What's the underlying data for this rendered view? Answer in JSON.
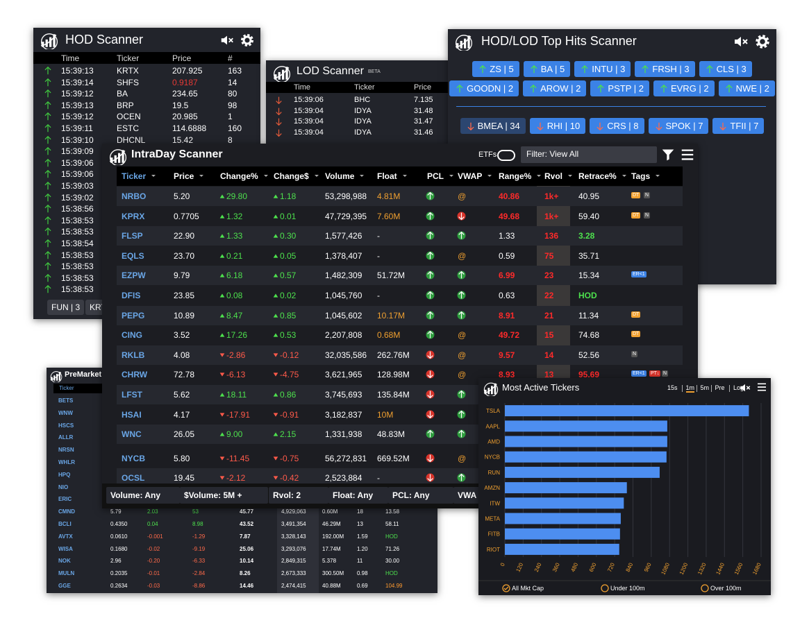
{
  "hod_scanner": {
    "title": "HOD Scanner",
    "columns": [
      "Time",
      "Ticker",
      "Price",
      "#"
    ],
    "rows": [
      [
        "15:39:13",
        "KRTX",
        "207.925",
        "163"
      ],
      [
        "15:39:14",
        "SHFS",
        "0.9187",
        "14"
      ],
      [
        "15:39:12",
        "BA",
        "234.65",
        "80"
      ],
      [
        "15:39:13",
        "BRP",
        "19.5",
        "98"
      ],
      [
        "15:39:12",
        "OCEN",
        "20.985",
        "1"
      ],
      [
        "15:39:11",
        "ESTC",
        "114.6888",
        "160"
      ],
      [
        "15:39:10",
        "DHCNL",
        "15.42",
        "8"
      ],
      [
        "15:39:09"
      ],
      [
        "15:39:06"
      ],
      [
        "15:39:06"
      ],
      [
        "15:39:03"
      ],
      [
        "15:39:02"
      ],
      [
        "15:38:56"
      ],
      [
        "15:38:53"
      ],
      [
        "15:38:53"
      ],
      [
        "15:38:54"
      ],
      [
        "15:38:53"
      ],
      [
        "15:38:53"
      ],
      [
        "15:38:53"
      ],
      [
        "15:38:53"
      ]
    ],
    "footer": [
      "FUN | 3",
      "KRT"
    ]
  },
  "lod_scanner": {
    "title": "LOD Scanner",
    "badge": "BETA",
    "columns": [
      "Time",
      "Ticker",
      "Price"
    ],
    "rows": [
      [
        "15:39:06",
        "BHC",
        "7.135"
      ],
      [
        "15:39:04",
        "IDYA",
        "31.48"
      ],
      [
        "15:39:04",
        "IDYA",
        "31.47"
      ],
      [
        "15:39:04",
        "IDYA",
        "31.46"
      ]
    ]
  },
  "top_hits": {
    "title": "HOD/LOD Top Hits Scanner",
    "up": [
      "ZS | 5",
      "BA | 5",
      "INTU | 3",
      "FRSH | 3",
      "CLS | 3",
      "GOODN | 2",
      "AROW | 2",
      "PSTP | 2",
      "EVRG | 2",
      "NWE | 2"
    ],
    "down": [
      "BMEA | 34",
      "RHI | 10",
      "CRS | 8",
      "SPOK | 7",
      "TFII | 7"
    ]
  },
  "premarket": {
    "title": "PreMarket",
    "columns": [
      "Ticker"
    ],
    "rows": [
      [
        "BETS"
      ],
      [
        "WNW"
      ],
      [
        "HSCS"
      ],
      [
        "ALLR"
      ],
      [
        "NRSN"
      ],
      [
        "WHLR"
      ],
      [
        "HPQ"
      ],
      [
        "NIO"
      ],
      [
        "ERIC"
      ],
      [
        "CMND",
        "5.79",
        "2.03",
        "53",
        "45.77",
        "4,929,063",
        "0.60M",
        "18",
        "13.58"
      ],
      [
        "BCLI",
        "0.4350",
        "0.04",
        "8.98",
        "43.52",
        "3,491,354",
        "46.29M",
        "13",
        "58.11"
      ],
      [
        "AVTX",
        "0.0610",
        "-0.001",
        "-1.29",
        "7.87",
        "3,328,143",
        "192.00M",
        "1.59",
        "HOD"
      ],
      [
        "WISA",
        "0.1680",
        "-0.02",
        "-9.19",
        "25.06",
        "3,293,076",
        "17.74M",
        "1.20",
        "71.26"
      ],
      [
        "NOK",
        "2.96",
        "-0.20",
        "-6.33",
        "10.14",
        "2,849,315",
        "5.378",
        "11",
        "30.00"
      ],
      [
        "MULN",
        "0.2035",
        "-0.01",
        "-2.84",
        "8.26",
        "2,673,333",
        "300.50M",
        "0.98",
        "HOD"
      ],
      [
        "GGE",
        "0.2634",
        "-0.03",
        "-8.86",
        "14.46",
        "2,474,415",
        "40.88M",
        "0.69",
        "104.99"
      ]
    ]
  },
  "intraday": {
    "title": "IntraDay Scanner",
    "etfs_label": "ETFs",
    "filter": "Filter: View All",
    "columns": [
      "Ticker",
      "Price",
      "Change%",
      "Change$",
      "Volume",
      "Float",
      "PCL",
      "VWAP",
      "Range%",
      "Rvol",
      "Retrace%",
      "Tags"
    ],
    "rows": [
      [
        "NRBO",
        "5.20",
        "29.80",
        "1.18",
        "53,298,988",
        "4.81M",
        "#2e9e3e",
        "@",
        "40.86",
        "1k+",
        "40.95",
        [
          "DT",
          "N"
        ]
      ],
      [
        "KPRX",
        "0.7705",
        "1.32",
        "0.01",
        "47,729,395",
        "7.60M",
        "#2e9e3e",
        "#d9342b",
        "49.68",
        "1k+",
        "59.40",
        [
          "DT",
          "N"
        ]
      ],
      [
        "FLSP",
        "22.90",
        "1.33",
        "0.30",
        "1,577,426",
        "-",
        "#2e9e3e",
        "#2e9e3e",
        "1.33",
        "136",
        "3.28",
        []
      ],
      [
        "EQLS",
        "23.70",
        "0.21",
        "0.05",
        "1,378,407",
        "-",
        "#2e9e3e",
        "@",
        "0.59",
        "75",
        "35.71",
        []
      ],
      [
        "EZPW",
        "9.79",
        "6.18",
        "0.57",
        "1,482,309",
        "51.72M",
        "#2e9e3e",
        "#2e9e3e",
        "6.99",
        "23",
        "15.34",
        [
          "ER<1"
        ]
      ],
      [
        "DFIS",
        "23.85",
        "0.08",
        "0.02",
        "1,045,760",
        "-",
        "#2e9e3e",
        "#2e9e3e",
        "0.63",
        "22",
        "HOD",
        []
      ],
      [
        "PEPG",
        "10.89",
        "8.47",
        "0.85",
        "1,045,602",
        "10.17M",
        "#2e9e3e",
        "#2e9e3e",
        "8.91",
        "21",
        "11.34",
        [
          "DT"
        ]
      ],
      [
        "CING",
        "3.52",
        "17.26",
        "0.53",
        "2,207,808",
        "0.68M",
        "#2e9e3e",
        "@",
        "49.72",
        "15",
        "74.68",
        [
          "DT"
        ]
      ],
      [
        "RKLB",
        "4.08",
        "-2.86",
        "-0.12",
        "32,035,586",
        "262.76M",
        "#d9342b",
        "@",
        "9.57",
        "14",
        "52.56",
        [
          "N"
        ]
      ],
      [
        "CHRW",
        "72.78",
        "-6.13",
        "-4.75",
        "3,621,965",
        "128.98M",
        "#d9342b",
        "@",
        "8.93",
        "13",
        "95.69",
        [
          "ER<1",
          "PT↓",
          "N"
        ]
      ],
      [
        "LFST",
        "5.62",
        "18.11",
        "0.86",
        "3,745,693",
        "135.84M",
        "#d9342b",
        "#2e9e3e"
      ],
      [
        "HSAI",
        "4.17",
        "-17.91",
        "-0.91",
        "3,182,837",
        "10M",
        "#d9342b",
        "#2e9e3e"
      ],
      [
        "WNC",
        "26.05",
        "9.00",
        "2.15",
        "1,331,938",
        "48.83M",
        "#2e9e3e",
        "#2e9e3e"
      ],
      [
        "NYCB",
        "5.80",
        "-11.45",
        "-0.75",
        "56,272,831",
        "669.52M",
        "#d9342b",
        "@"
      ],
      [
        "OCSL",
        "19.45",
        "-2.12",
        "-0.42",
        "2,523,884",
        "-",
        "#d9342b",
        "#2e9e3e"
      ]
    ],
    "filters": [
      "Volume: Any",
      "$Volume: 5M +",
      "Rvol: 2",
      "Float: Any",
      "PCL: Any",
      "VWA"
    ]
  },
  "chart_data": {
    "type": "bar",
    "orientation": "horizontal",
    "title": "Most Active Tickers",
    "timeframes": [
      "15s",
      "1m",
      "5m",
      "Pre",
      "Log"
    ],
    "categories": [
      "TSLA",
      "AAPL",
      "AMD",
      "NYCB",
      "RUN",
      "AMZN",
      "ITW",
      "META",
      "FITB",
      "RIOT"
    ],
    "values": [
      1600,
      1065,
      1065,
      1060,
      1015,
      800,
      780,
      760,
      755,
      750
    ],
    "color": "#4d8ef0",
    "xlim": [
      0,
      1680
    ],
    "xticks": [
      0,
      120,
      240,
      360,
      480,
      600,
      720,
      840,
      960,
      1080,
      1200,
      1320,
      1440,
      1560,
      1680
    ],
    "grid": true,
    "cap_filters": [
      "All Mkt Cap",
      "Under 100m",
      "Over 100m"
    ]
  }
}
